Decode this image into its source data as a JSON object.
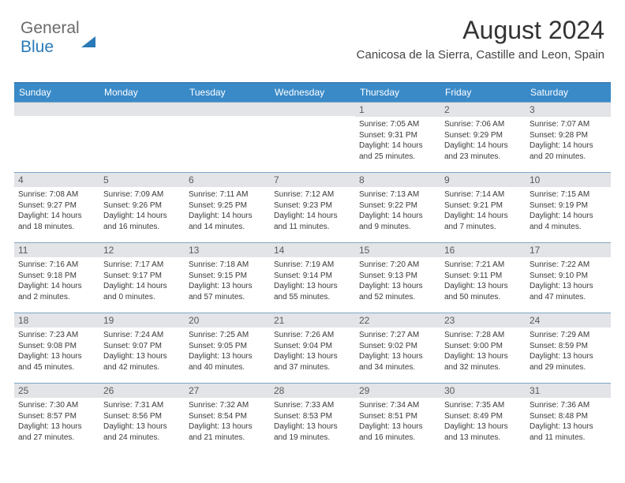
{
  "brand": {
    "part1": "General",
    "part2": "Blue"
  },
  "header": {
    "month_title": "August 2024",
    "location": "Canicosa de la Sierra, Castille and Leon, Spain"
  },
  "colors": {
    "header_bg": "#3a8ac8",
    "header_border": "#3a7fb5",
    "row_border": "#7ea7c5",
    "daynum_bg": "#e2e4e7",
    "text_dark": "#3a3a3a",
    "brand_grey": "#6a6a6a",
    "brand_blue": "#2a7ab8"
  },
  "day_names": [
    "Sunday",
    "Monday",
    "Tuesday",
    "Wednesday",
    "Thursday",
    "Friday",
    "Saturday"
  ],
  "weeks": [
    [
      {
        "n": "",
        "sr": "",
        "ss": "",
        "dl": ""
      },
      {
        "n": "",
        "sr": "",
        "ss": "",
        "dl": ""
      },
      {
        "n": "",
        "sr": "",
        "ss": "",
        "dl": ""
      },
      {
        "n": "",
        "sr": "",
        "ss": "",
        "dl": ""
      },
      {
        "n": "1",
        "sr": "7:05 AM",
        "ss": "9:31 PM",
        "dl": "14 hours and 25 minutes."
      },
      {
        "n": "2",
        "sr": "7:06 AM",
        "ss": "9:29 PM",
        "dl": "14 hours and 23 minutes."
      },
      {
        "n": "3",
        "sr": "7:07 AM",
        "ss": "9:28 PM",
        "dl": "14 hours and 20 minutes."
      }
    ],
    [
      {
        "n": "4",
        "sr": "7:08 AM",
        "ss": "9:27 PM",
        "dl": "14 hours and 18 minutes."
      },
      {
        "n": "5",
        "sr": "7:09 AM",
        "ss": "9:26 PM",
        "dl": "14 hours and 16 minutes."
      },
      {
        "n": "6",
        "sr": "7:11 AM",
        "ss": "9:25 PM",
        "dl": "14 hours and 14 minutes."
      },
      {
        "n": "7",
        "sr": "7:12 AM",
        "ss": "9:23 PM",
        "dl": "14 hours and 11 minutes."
      },
      {
        "n": "8",
        "sr": "7:13 AM",
        "ss": "9:22 PM",
        "dl": "14 hours and 9 minutes."
      },
      {
        "n": "9",
        "sr": "7:14 AM",
        "ss": "9:21 PM",
        "dl": "14 hours and 7 minutes."
      },
      {
        "n": "10",
        "sr": "7:15 AM",
        "ss": "9:19 PM",
        "dl": "14 hours and 4 minutes."
      }
    ],
    [
      {
        "n": "11",
        "sr": "7:16 AM",
        "ss": "9:18 PM",
        "dl": "14 hours and 2 minutes."
      },
      {
        "n": "12",
        "sr": "7:17 AM",
        "ss": "9:17 PM",
        "dl": "14 hours and 0 minutes."
      },
      {
        "n": "13",
        "sr": "7:18 AM",
        "ss": "9:15 PM",
        "dl": "13 hours and 57 minutes."
      },
      {
        "n": "14",
        "sr": "7:19 AM",
        "ss": "9:14 PM",
        "dl": "13 hours and 55 minutes."
      },
      {
        "n": "15",
        "sr": "7:20 AM",
        "ss": "9:13 PM",
        "dl": "13 hours and 52 minutes."
      },
      {
        "n": "16",
        "sr": "7:21 AM",
        "ss": "9:11 PM",
        "dl": "13 hours and 50 minutes."
      },
      {
        "n": "17",
        "sr": "7:22 AM",
        "ss": "9:10 PM",
        "dl": "13 hours and 47 minutes."
      }
    ],
    [
      {
        "n": "18",
        "sr": "7:23 AM",
        "ss": "9:08 PM",
        "dl": "13 hours and 45 minutes."
      },
      {
        "n": "19",
        "sr": "7:24 AM",
        "ss": "9:07 PM",
        "dl": "13 hours and 42 minutes."
      },
      {
        "n": "20",
        "sr": "7:25 AM",
        "ss": "9:05 PM",
        "dl": "13 hours and 40 minutes."
      },
      {
        "n": "21",
        "sr": "7:26 AM",
        "ss": "9:04 PM",
        "dl": "13 hours and 37 minutes."
      },
      {
        "n": "22",
        "sr": "7:27 AM",
        "ss": "9:02 PM",
        "dl": "13 hours and 34 minutes."
      },
      {
        "n": "23",
        "sr": "7:28 AM",
        "ss": "9:00 PM",
        "dl": "13 hours and 32 minutes."
      },
      {
        "n": "24",
        "sr": "7:29 AM",
        "ss": "8:59 PM",
        "dl": "13 hours and 29 minutes."
      }
    ],
    [
      {
        "n": "25",
        "sr": "7:30 AM",
        "ss": "8:57 PM",
        "dl": "13 hours and 27 minutes."
      },
      {
        "n": "26",
        "sr": "7:31 AM",
        "ss": "8:56 PM",
        "dl": "13 hours and 24 minutes."
      },
      {
        "n": "27",
        "sr": "7:32 AM",
        "ss": "8:54 PM",
        "dl": "13 hours and 21 minutes."
      },
      {
        "n": "28",
        "sr": "7:33 AM",
        "ss": "8:53 PM",
        "dl": "13 hours and 19 minutes."
      },
      {
        "n": "29",
        "sr": "7:34 AM",
        "ss": "8:51 PM",
        "dl": "13 hours and 16 minutes."
      },
      {
        "n": "30",
        "sr": "7:35 AM",
        "ss": "8:49 PM",
        "dl": "13 hours and 13 minutes."
      },
      {
        "n": "31",
        "sr": "7:36 AM",
        "ss": "8:48 PM",
        "dl": "13 hours and 11 minutes."
      }
    ]
  ],
  "labels": {
    "sunrise": "Sunrise:",
    "sunset": "Sunset:",
    "daylight": "Daylight:"
  }
}
